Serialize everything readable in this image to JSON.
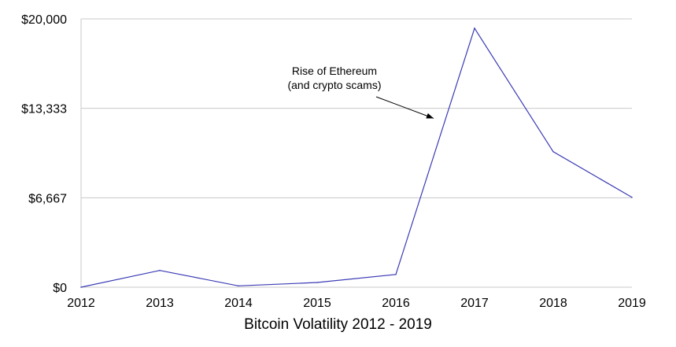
{
  "chart_data": {
    "type": "line",
    "title": "Bitcoin Volatility 2012 - 2019",
    "x": [
      "2012",
      "2013",
      "2014",
      "2015",
      "2016",
      "2017",
      "2018",
      "2019"
    ],
    "series": [
      {
        "values": [
          0,
          1250,
          100,
          350,
          950,
          19300,
          10100,
          6700
        ]
      }
    ],
    "ylim": [
      0,
      20000
    ],
    "yticks": [
      "$0",
      "$6,667",
      "$13,333",
      "$20,000"
    ],
    "grid": true,
    "line_color": "#3b3bb5",
    "annotation": {
      "lines": [
        "Rise of Ethereum",
        "(and crypto scams)"
      ],
      "points_to_x": 2016.5
    }
  }
}
